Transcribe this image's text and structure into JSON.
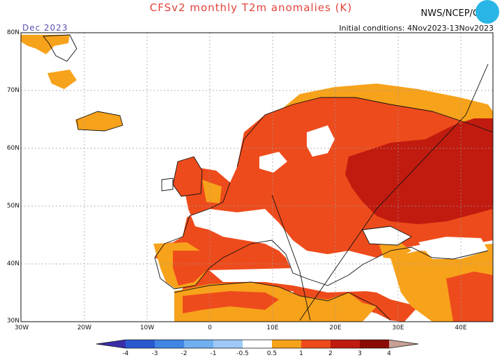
{
  "header": {
    "title": "CFSv2 monthly T2m anomalies (K)",
    "credit": "NWS/NCEP/CPC",
    "initial_conditions": "Initial conditions: 4Nov2023-13Nov2023",
    "month": "Dec 2023"
  },
  "axes": {
    "lat_labels": [
      "80N",
      "70N",
      "60N",
      "50N",
      "40N",
      "30N"
    ],
    "lon_labels": [
      "30W",
      "20W",
      "10W",
      "0",
      "10E",
      "20E",
      "30E",
      "40E"
    ]
  },
  "colorbar": {
    "labels": [
      "-4",
      "-3",
      "-2",
      "-1",
      "-0.5",
      "0.5",
      "1",
      "2",
      "3",
      "4"
    ],
    "colors": [
      "#3a2ea8",
      "#2a5ad0",
      "#3f86e6",
      "#6fb0f0",
      "#9cc9f5",
      "#ffffff",
      "#f7a21b",
      "#ee4b1c",
      "#c11b0f",
      "#8a0b05",
      "#c8a094"
    ]
  },
  "legend_colors": {
    "anomaly_0_5_1": "#f7a21b",
    "anomaly_1_2": "#ee4b1c",
    "anomaly_2_3": "#c11b0f",
    "land_neutral": "#ffffff"
  }
}
